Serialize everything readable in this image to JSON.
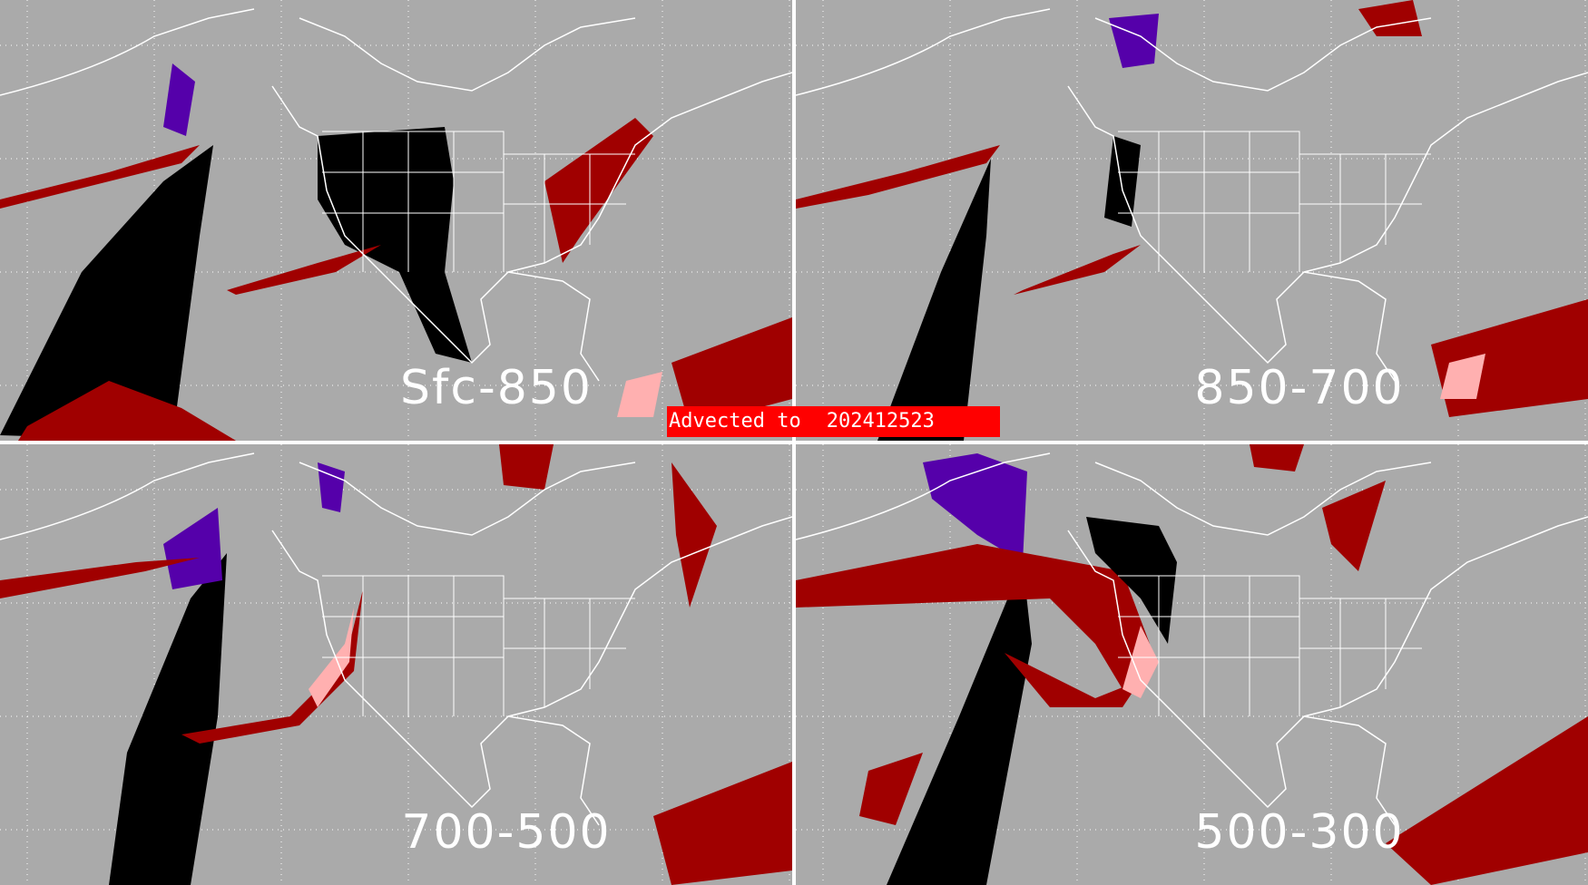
{
  "banner": {
    "prefix": "Advected to",
    "date": "202412523"
  },
  "panels": [
    {
      "label": "Sfc-850"
    },
    {
      "label": "850-700"
    },
    {
      "label": "700-500"
    },
    {
      "label": "500-300"
    }
  ],
  "colors": {
    "background": "#aaaaaa",
    "coastlines": "#ffffff",
    "banner": "#ff0000",
    "dark_red": "#a00000",
    "pink": "#ffb0b0",
    "purple": "#5500aa",
    "black": "#000000"
  }
}
